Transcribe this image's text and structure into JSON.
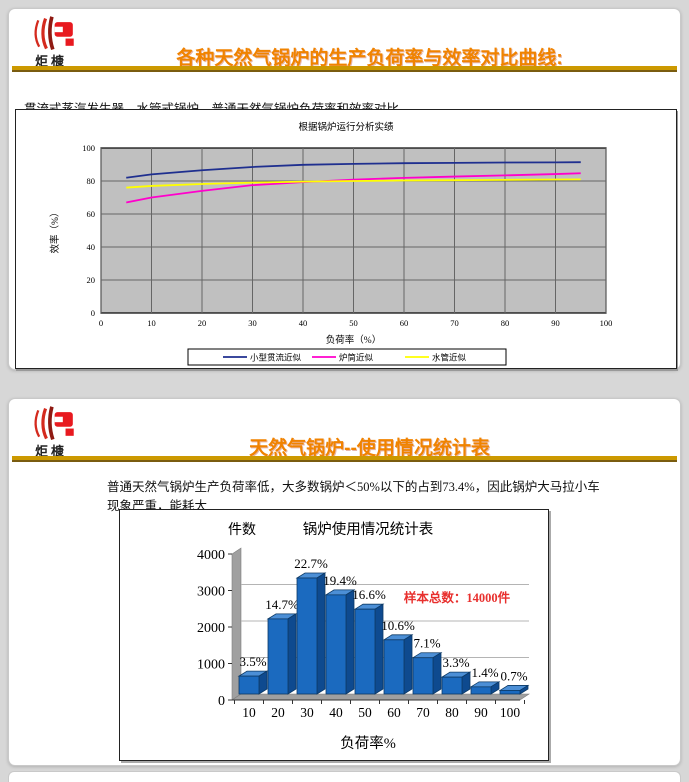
{
  "page": {
    "background": "#d7d7d7"
  },
  "brand": {
    "logo_text": "炬槺",
    "accent_gold": "#cc9900",
    "title_orange": "#f08300",
    "logo_red": "#e8191f"
  },
  "slide1": {
    "title": "各种天然气锅炉的生产负荷率与效率对比曲线:",
    "subtitle": "贯流式蒸汽发生器、水管式锅炉、普通天然气锅炉负荷率和效率对比"
  },
  "slide2": {
    "title": "天然气锅炉--使用情况统计表",
    "body": "普通天然气锅炉生产负荷率低，大多数锅炉＜50%以下的占到73.4%，因此锅炉大马拉小车现象严重，能耗大"
  },
  "chart_data": [
    {
      "type": "line",
      "title": "根据锅炉运行分析实绩",
      "xlabel": "负荷率（%）",
      "ylabel": "效率（%）",
      "xlim": [
        0,
        100
      ],
      "ylim": [
        0,
        100
      ],
      "x_ticks": [
        0,
        10,
        20,
        30,
        40,
        50,
        60,
        70,
        80,
        90,
        100
      ],
      "y_ticks": [
        0,
        20,
        40,
        60,
        80,
        100
      ],
      "grid": true,
      "plot_bg": "#c0c0c0",
      "grid_color": "#666666",
      "legend_position": "bottom",
      "x": [
        5,
        10,
        20,
        30,
        40,
        50,
        60,
        70,
        80,
        90,
        95
      ],
      "series": [
        {
          "name": "小型贯流近似",
          "color": "#1f2f8f",
          "values": [
            82,
            84,
            86.5,
            88.5,
            89.8,
            90.4,
            90.8,
            91,
            91.2,
            91.3,
            91.4
          ]
        },
        {
          "name": "炉筒近似",
          "color": "#ff00cc",
          "values": [
            67,
            70,
            74,
            77.5,
            79.3,
            80.8,
            81.9,
            82.7,
            83.4,
            84.2,
            84.7
          ]
        },
        {
          "name": "水管近似",
          "color": "#ffff00",
          "values": [
            76,
            77,
            78.2,
            79,
            79.6,
            80,
            80.3,
            80.5,
            80.7,
            80.9,
            81
          ]
        }
      ]
    },
    {
      "type": "bar",
      "style": "3d",
      "title": "锅炉使用情况统计表",
      "ylabel": "件数",
      "xlabel": "负荷率%",
      "ylim": [
        0,
        4000
      ],
      "y_ticks": [
        0,
        1000,
        2000,
        3000,
        4000
      ],
      "categories": [
        "10",
        "20",
        "30",
        "40",
        "50",
        "60",
        "70",
        "80",
        "90",
        "100"
      ],
      "values": [
        490,
        2058,
        3178,
        2716,
        2324,
        1484,
        994,
        462,
        196,
        98
      ],
      "labels": [
        "3.5%",
        "14.7%",
        "22.7%",
        "19.4%",
        "16.6%",
        "10.6%",
        "7.1%",
        "3.3%",
        "1.4%",
        "0.7%"
      ],
      "annotation": "样本总数：14000件",
      "annotation_color": "#e8302e",
      "bar_color": "#1b6abf",
      "bar_top_color": "#4c8fd6",
      "bar_side_color": "#0e4a8f",
      "wall_color": "#a0a0a0",
      "grid_color": "#b4b4b4"
    }
  ]
}
